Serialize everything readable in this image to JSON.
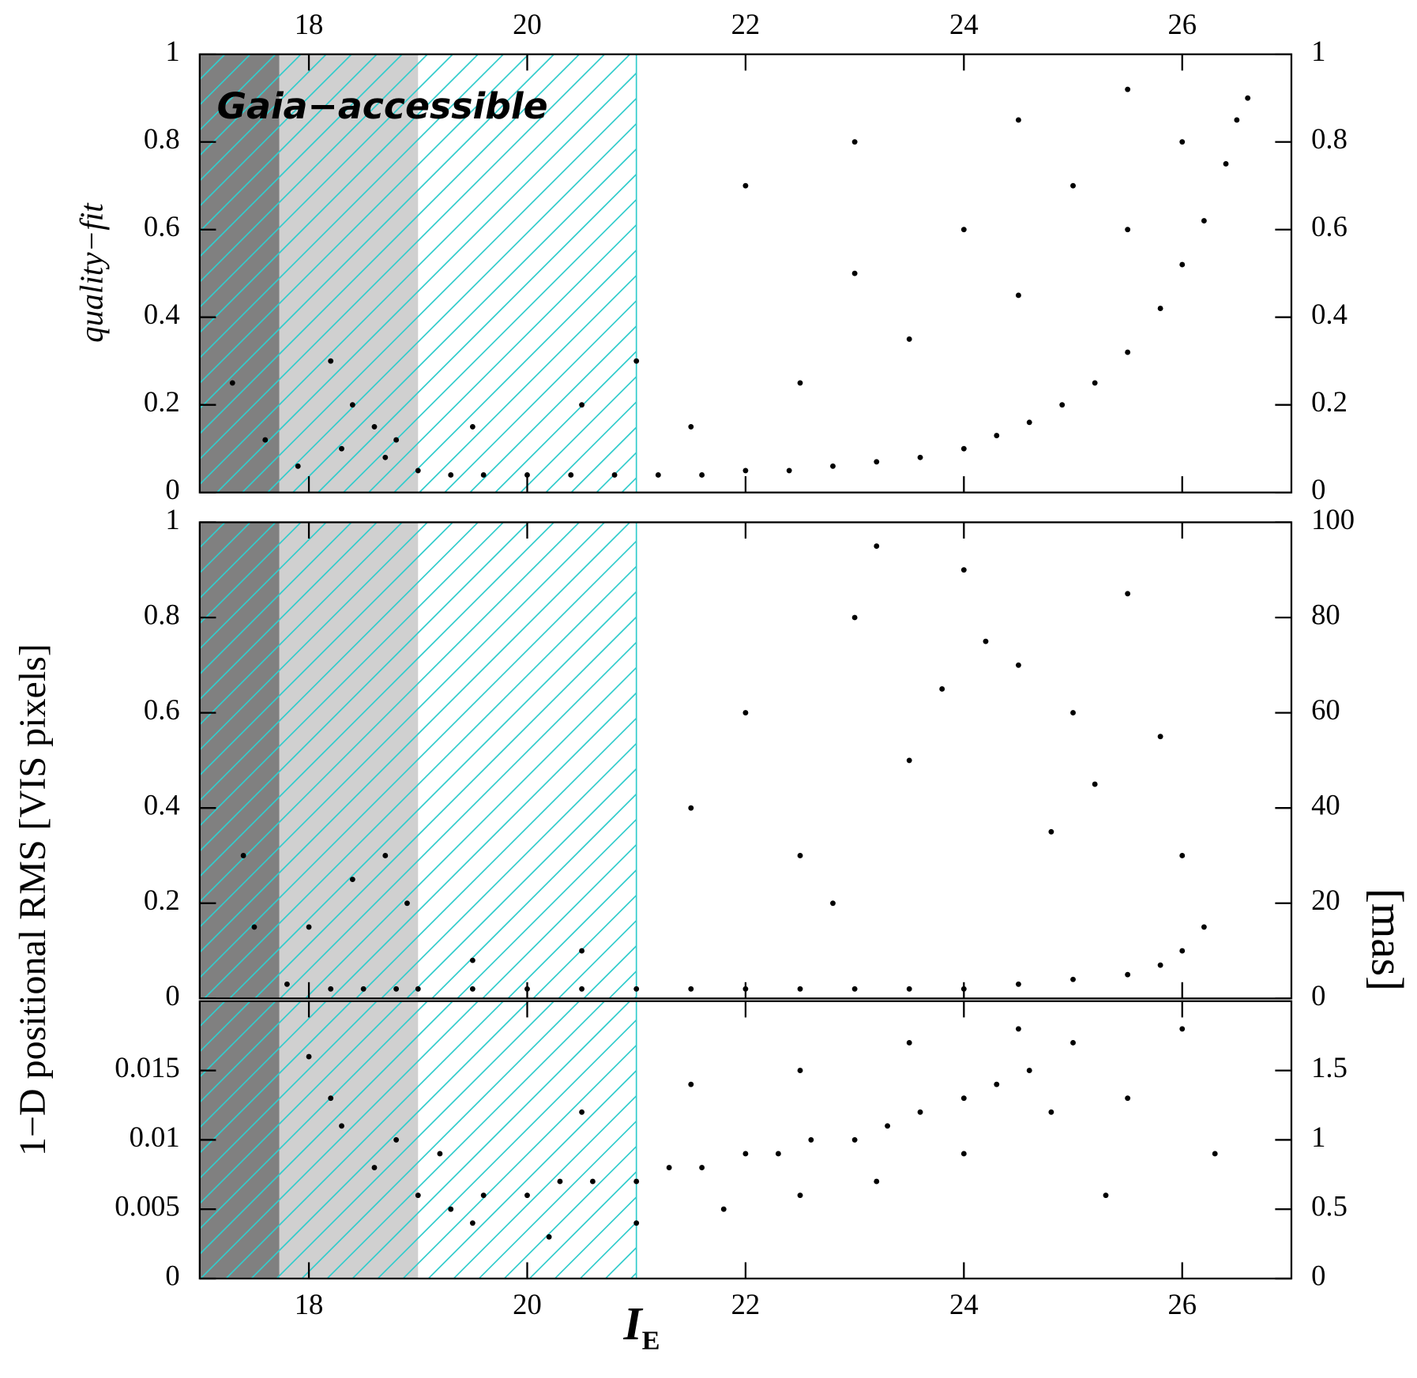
{
  "chart_data": [
    {
      "type": "scatter",
      "xlim": [
        17,
        27
      ],
      "xticks": [
        18,
        20,
        22,
        24,
        26
      ],
      "xtick_labels": "top",
      "ylim": [
        0,
        1
      ],
      "yticks": [
        0,
        0.2,
        0.4,
        0.6,
        0.8,
        1
      ],
      "y2lim": [
        0,
        1
      ],
      "y2ticks": [
        0,
        0.2,
        0.4,
        0.6,
        0.8,
        1
      ],
      "ylabel": "quality−fit",
      "annotation": "Gaia−accessible",
      "annotation_color": "#33dddd",
      "shaded_regions": [
        {
          "xlim": [
            17,
            17.73
          ],
          "color": "#808080"
        },
        {
          "xlim": [
            17.73,
            19
          ],
          "color": "#d0d0d0"
        }
      ],
      "hatch": {
        "xlim": [
          17,
          21
        ],
        "color": "#33cccc"
      },
      "series": [
        {
          "color": "#000000",
          "x": [
            17.3,
            17.6,
            17.9,
            18.2,
            18.4,
            18.6,
            18.8,
            19.0,
            19.3,
            19.6,
            20.0,
            20.4,
            20.8,
            21.2,
            21.6,
            22.0,
            22.4,
            22.8,
            23.2,
            23.6,
            24.0,
            24.3,
            24.6,
            24.9,
            25.2,
            25.5,
            25.8,
            26.0,
            26.2,
            26.4,
            26.5,
            26.6,
            18.3,
            18.7,
            19.5,
            20.5,
            21.5,
            22.5,
            23.0,
            23.5,
            24.0,
            24.5,
            25.0,
            25.5,
            26.0,
            22.0,
            23.0,
            24.5,
            25.5,
            21.0
          ],
          "values": [
            0.25,
            0.12,
            0.06,
            0.3,
            0.2,
            0.15,
            0.12,
            0.05,
            0.04,
            0.04,
            0.04,
            0.04,
            0.04,
            0.04,
            0.04,
            0.05,
            0.05,
            0.06,
            0.07,
            0.08,
            0.1,
            0.13,
            0.16,
            0.2,
            0.25,
            0.32,
            0.42,
            0.52,
            0.62,
            0.75,
            0.85,
            0.9,
            0.1,
            0.08,
            0.15,
            0.2,
            0.15,
            0.25,
            0.5,
            0.35,
            0.6,
            0.45,
            0.7,
            0.6,
            0.8,
            0.7,
            0.8,
            0.85,
            0.92,
            0.3
          ]
        }
      ]
    },
    {
      "type": "scatter",
      "xlim": [
        17,
        27
      ],
      "xticks": [
        18,
        20,
        22,
        24,
        26
      ],
      "xtick_labels": "none",
      "ylim": [
        0,
        1
      ],
      "yticks": [
        0,
        0.2,
        0.4,
        0.6,
        0.8,
        1
      ],
      "y2lim": [
        0,
        100
      ],
      "y2ticks": [
        0,
        20,
        40,
        60,
        80,
        100
      ],
      "ylabel": "1−D positional RMS [VIS pixels]",
      "y2label": "[mas]",
      "shaded_regions": [
        {
          "xlim": [
            17,
            17.73
          ],
          "color": "#808080"
        },
        {
          "xlim": [
            17.73,
            19
          ],
          "color": "#d0d0d0"
        }
      ],
      "hatch": {
        "xlim": [
          17,
          21
        ],
        "color": "#33cccc"
      },
      "series": [
        {
          "color": "#000000",
          "x": [
            17.4,
            17.8,
            18.2,
            18.5,
            18.8,
            19.0,
            19.5,
            20.0,
            20.5,
            21.0,
            21.5,
            22.0,
            22.5,
            23.0,
            23.5,
            24.0,
            24.5,
            25.0,
            25.5,
            25.8,
            26.0,
            26.2,
            17.5,
            18.0,
            18.4,
            18.7,
            18.9,
            21.5,
            22.0,
            22.5,
            23.0,
            23.5,
            24.0,
            24.5,
            25.0,
            25.5,
            26.0,
            23.2,
            24.2,
            25.2,
            22.8,
            23.8,
            24.8,
            25.8,
            20.5,
            19.5
          ],
          "values": [
            0.3,
            0.03,
            0.02,
            0.02,
            0.02,
            0.02,
            0.02,
            0.02,
            0.02,
            0.02,
            0.02,
            0.02,
            0.02,
            0.02,
            0.02,
            0.02,
            0.03,
            0.04,
            0.05,
            0.07,
            0.1,
            0.15,
            0.15,
            0.15,
            0.25,
            0.3,
            0.2,
            0.4,
            0.6,
            0.3,
            0.8,
            0.5,
            0.9,
            0.7,
            0.6,
            0.85,
            0.3,
            0.95,
            0.75,
            0.45,
            0.2,
            0.65,
            0.35,
            0.55,
            0.1,
            0.08
          ]
        }
      ]
    },
    {
      "type": "scatter",
      "xlim": [
        17,
        27
      ],
      "xticks": [
        18,
        20,
        22,
        24,
        26
      ],
      "xtick_labels": "bottom",
      "ylim": [
        0,
        0.02
      ],
      "yticks": [
        0,
        0.005,
        0.01,
        0.015
      ],
      "y2lim": [
        0,
        2
      ],
      "y2ticks": [
        0,
        0.5,
        1,
        1.5
      ],
      "xlabel": "I",
      "xlabel_subscript": "E",
      "shaded_regions": [
        {
          "xlim": [
            17,
            17.73
          ],
          "color": "#808080"
        },
        {
          "xlim": [
            17.73,
            19
          ],
          "color": "#d0d0d0"
        }
      ],
      "hatch": {
        "xlim": [
          17,
          21
        ],
        "color": "#33cccc"
      },
      "series": [
        {
          "color": "#000000",
          "x": [
            18.0,
            18.3,
            18.6,
            19.0,
            19.3,
            19.6,
            20.0,
            20.3,
            20.6,
            21.0,
            21.3,
            21.6,
            22.0,
            22.3,
            22.6,
            23.0,
            23.3,
            23.6,
            24.0,
            24.3,
            24.6,
            25.0,
            18.2,
            18.8,
            19.5,
            20.2,
            21.0,
            21.8,
            22.5,
            23.2,
            24.0,
            24.8,
            19.2,
            20.5,
            21.5,
            22.5,
            23.5,
            24.5,
            25.5,
            26.0,
            26.3,
            25.3
          ],
          "values": [
            0.016,
            0.011,
            0.008,
            0.006,
            0.005,
            0.006,
            0.006,
            0.007,
            0.007,
            0.007,
            0.008,
            0.008,
            0.009,
            0.009,
            0.01,
            0.01,
            0.011,
            0.012,
            0.013,
            0.014,
            0.015,
            0.017,
            0.013,
            0.01,
            0.004,
            0.003,
            0.004,
            0.005,
            0.006,
            0.007,
            0.009,
            0.012,
            0.009,
            0.012,
            0.014,
            0.015,
            0.017,
            0.018,
            0.013,
            0.018,
            0.009,
            0.006
          ]
        }
      ]
    }
  ]
}
